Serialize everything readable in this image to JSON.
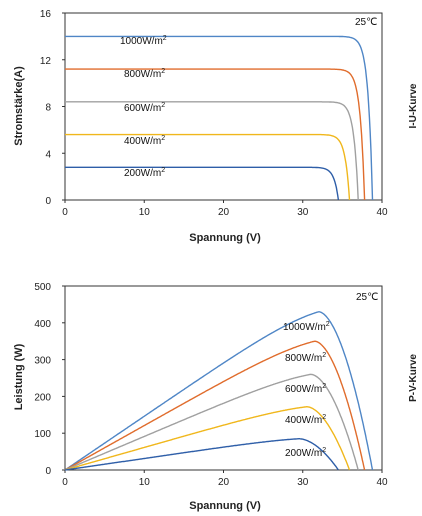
{
  "chart_data": [
    {
      "type": "line",
      "title": "",
      "side_label": "I-U-Kurve",
      "xlabel": "Spannung (V)",
      "ylabel": "Stromstärke(A)",
      "xlim": [
        0,
        40
      ],
      "ylim": [
        0,
        16
      ],
      "xticks": [
        0,
        10,
        20,
        30,
        40
      ],
      "yticks": [
        0,
        4,
        8,
        12,
        16
      ],
      "temperature": "25℃",
      "grid": false,
      "series": [
        {
          "name": "1000W/m2",
          "label": "1000W/m",
          "sup": "2",
          "color": "#4f86c6",
          "isc": 14.0,
          "voc": 38.8
        },
        {
          "name": "800W/m2",
          "label": "800W/m",
          "sup": "2",
          "color": "#e06c2c",
          "isc": 11.2,
          "voc": 37.8
        },
        {
          "name": "600W/m2",
          "label": "600W/m",
          "sup": "2",
          "color": "#a0a0a0",
          "isc": 8.4,
          "voc": 37.0
        },
        {
          "name": "400W/m2",
          "label": "400W/m",
          "sup": "2",
          "color": "#f0b71c",
          "isc": 5.6,
          "voc": 35.9
        },
        {
          "name": "200W/m2",
          "label": "200W/m",
          "sup": "2",
          "color": "#2e5ea8",
          "isc": 2.8,
          "voc": 34.5
        }
      ]
    },
    {
      "type": "line",
      "title": "",
      "side_label": "P-V-Kurve",
      "xlabel": "Spannung (V)",
      "ylabel": "Leistung (W)",
      "xlim": [
        0,
        40
      ],
      "ylim": [
        0,
        500
      ],
      "xticks": [
        0,
        10,
        20,
        30,
        40
      ],
      "yticks": [
        0,
        100,
        200,
        300,
        400,
        500
      ],
      "temperature": "25℃",
      "grid": false,
      "series": [
        {
          "name": "1000W/m2",
          "label": "1000W/m",
          "sup": "2",
          "color": "#4f86c6",
          "pmax": 430,
          "vmp": 32.0,
          "voc": 38.8
        },
        {
          "name": "800W/m2",
          "label": "800W/m",
          "sup": "2",
          "color": "#e06c2c",
          "pmax": 350,
          "vmp": 31.5,
          "voc": 37.8
        },
        {
          "name": "600W/m2",
          "label": "600W/m",
          "sup": "2",
          "color": "#a0a0a0",
          "pmax": 260,
          "vmp": 31.0,
          "voc": 37.0
        },
        {
          "name": "400W/m2",
          "label": "400W/m",
          "sup": "2",
          "color": "#f0b71c",
          "pmax": 172,
          "vmp": 30.5,
          "voc": 35.9
        },
        {
          "name": "200W/m2",
          "label": "200W/m",
          "sup": "2",
          "color": "#2e5ea8",
          "pmax": 85,
          "vmp": 29.5,
          "voc": 34.5
        }
      ]
    }
  ]
}
